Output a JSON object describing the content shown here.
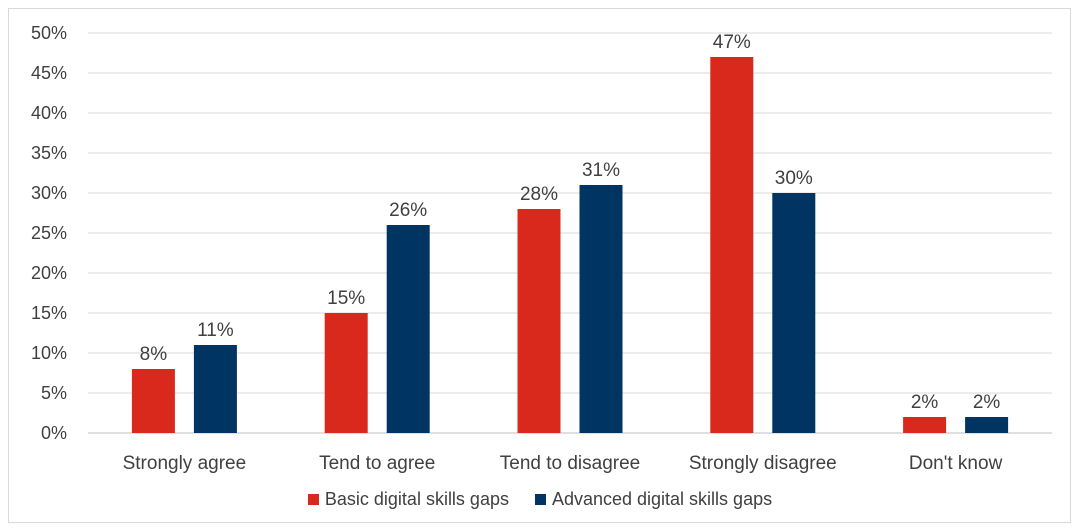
{
  "chart_data": {
    "type": "bar",
    "categories": [
      "Strongly agree",
      "Tend to agree",
      "Tend to disagree",
      "Strongly disagree",
      "Don't know"
    ],
    "series": [
      {
        "name": "Basic digital skills gaps",
        "color": "#d9291c",
        "values": [
          8,
          15,
          28,
          47,
          2
        ],
        "labels": [
          "8%",
          "15%",
          "28%",
          "47%",
          "2%"
        ]
      },
      {
        "name": "Advanced digital skills gaps",
        "color": "#003462",
        "values": [
          11,
          26,
          31,
          30,
          2
        ],
        "labels": [
          "11%",
          "26%",
          "31%",
          "30%",
          "2%"
        ]
      }
    ],
    "ylim": [
      0,
      50
    ],
    "yticks": [
      "0%",
      "5%",
      "10%",
      "15%",
      "20%",
      "25%",
      "30%",
      "35%",
      "40%",
      "45%",
      "50%"
    ],
    "gridlines": true,
    "legend_position": "bottom"
  }
}
